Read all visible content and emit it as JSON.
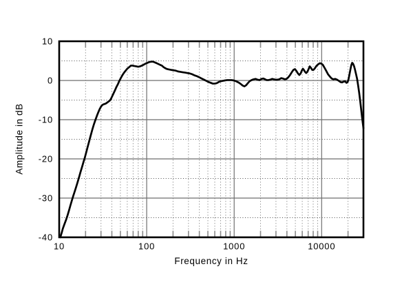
{
  "chart_data": {
    "type": "line",
    "title": "",
    "xlabel": "Frequency in Hz",
    "ylabel": "Amplitude in dB",
    "x_scale": "log",
    "xlim": [
      10,
      30000
    ],
    "ylim": [
      -40,
      10
    ],
    "grid": true,
    "legend_position": "none",
    "x_tick_labels": [
      {
        "value": 10,
        "label": "10"
      },
      {
        "value": 100,
        "label": "100"
      },
      {
        "value": 1000,
        "label": "1000"
      },
      {
        "value": 10000,
        "label": "10000"
      }
    ],
    "y_tick_labels": [
      {
        "value": 10,
        "label": "10"
      },
      {
        "value": 0,
        "label": "0"
      },
      {
        "value": -10,
        "label": "-10"
      },
      {
        "value": -20,
        "label": "-20"
      },
      {
        "value": -30,
        "label": "-30"
      },
      {
        "value": -40,
        "label": "-40"
      }
    ],
    "x_major_gridlines": [
      100,
      1000,
      10000
    ],
    "y_major_gridlines": [
      0,
      -10,
      -20,
      -30
    ],
    "y_minor_gridlines": [
      5,
      -5,
      -15,
      -25,
      -35
    ],
    "colors": {
      "curve": "#000000",
      "border": "#000000",
      "major_grid": "#6e6e6e",
      "minor_grid_v": "#9a9a9a",
      "minor_grid_h": "#4a4a4a",
      "tick_mark": "#8a8a8a"
    },
    "series": [
      {
        "name": "frequency response",
        "color": "#000000",
        "points": [
          [
            10.3,
            -40
          ],
          [
            10.7,
            -38.8
          ],
          [
            11,
            -37.8
          ],
          [
            11.5,
            -36.6
          ],
          [
            12,
            -35.5
          ],
          [
            12.5,
            -34.3
          ],
          [
            13,
            -33
          ],
          [
            13.5,
            -31.7
          ],
          [
            14,
            -30.5
          ],
          [
            14.5,
            -29.4
          ],
          [
            15,
            -28.4
          ],
          [
            15.5,
            -27.4
          ],
          [
            16,
            -26.4
          ],
          [
            16.5,
            -25.4
          ],
          [
            17,
            -24.4
          ],
          [
            17.5,
            -23.4
          ],
          [
            18,
            -22.5
          ],
          [
            18.5,
            -21.6
          ],
          [
            19,
            -20.7
          ],
          [
            19.5,
            -19.9
          ],
          [
            20,
            -19
          ],
          [
            20.5,
            -18.1
          ],
          [
            21,
            -17.2
          ],
          [
            22,
            -15.5
          ],
          [
            23,
            -13.9
          ],
          [
            24,
            -12.4
          ],
          [
            25,
            -11.1
          ],
          [
            26,
            -10
          ],
          [
            27,
            -9
          ],
          [
            28,
            -8.1
          ],
          [
            29,
            -7.3
          ],
          [
            30,
            -6.7
          ],
          [
            31,
            -6.3
          ],
          [
            32,
            -6.1
          ],
          [
            33,
            -6
          ],
          [
            34,
            -5.9
          ],
          [
            35,
            -5.7
          ],
          [
            36,
            -5.5
          ],
          [
            37,
            -5.3
          ],
          [
            38,
            -5.1
          ],
          [
            39,
            -4.7
          ],
          [
            40,
            -4.2
          ],
          [
            41,
            -3.7
          ],
          [
            42,
            -3.2
          ],
          [
            43,
            -2.7
          ],
          [
            44,
            -2.2
          ],
          [
            45,
            -1.7
          ],
          [
            46,
            -1.3
          ],
          [
            47,
            -0.9
          ],
          [
            48,
            -0.4
          ],
          [
            49,
            0
          ],
          [
            50,
            0.4
          ],
          [
            52,
            1.1
          ],
          [
            54,
            1.7
          ],
          [
            56,
            2.2
          ],
          [
            58,
            2.6
          ],
          [
            60,
            3
          ],
          [
            63,
            3.4
          ],
          [
            66,
            3.8
          ],
          [
            69,
            3.8
          ],
          [
            72,
            3.7
          ],
          [
            76,
            3.6
          ],
          [
            80,
            3.5
          ],
          [
            84,
            3.6
          ],
          [
            88,
            3.8
          ],
          [
            92,
            4
          ],
          [
            97,
            4.3
          ],
          [
            102,
            4.5
          ],
          [
            107,
            4.7
          ],
          [
            113,
            4.8
          ],
          [
            118,
            4.8
          ],
          [
            124,
            4.6
          ],
          [
            130,
            4.4
          ],
          [
            136,
            4.2
          ],
          [
            142,
            4
          ],
          [
            149,
            3.8
          ],
          [
            156,
            3.4
          ],
          [
            164,
            3.1
          ],
          [
            172,
            2.9
          ],
          [
            181,
            2.8
          ],
          [
            190,
            2.7
          ],
          [
            203,
            2.6
          ],
          [
            215,
            2.5
          ],
          [
            228,
            2.3
          ],
          [
            242,
            2.2
          ],
          [
            258,
            2.1
          ],
          [
            275,
            2
          ],
          [
            292,
            1.9
          ],
          [
            310,
            1.8
          ],
          [
            330,
            1.6
          ],
          [
            352,
            1.3
          ],
          [
            375,
            1.1
          ],
          [
            400,
            0.8
          ],
          [
            425,
            0.5
          ],
          [
            452,
            0.2
          ],
          [
            480,
            -0.1
          ],
          [
            510,
            -0.4
          ],
          [
            540,
            -0.6
          ],
          [
            570,
            -0.8
          ],
          [
            600,
            -0.8
          ],
          [
            630,
            -0.7
          ],
          [
            665,
            -0.4
          ],
          [
            700,
            -0.2
          ],
          [
            740,
            -0.1
          ],
          [
            780,
            0
          ],
          [
            830,
            0.1
          ],
          [
            880,
            0.1
          ],
          [
            935,
            0.1
          ],
          [
            990,
            0
          ],
          [
            1050,
            -0.2
          ],
          [
            1120,
            -0.5
          ],
          [
            1190,
            -0.9
          ],
          [
            1250,
            -1.3
          ],
          [
            1310,
            -1.5
          ],
          [
            1370,
            -1.2
          ],
          [
            1430,
            -0.7
          ],
          [
            1500,
            -0.2
          ],
          [
            1580,
            0.1
          ],
          [
            1670,
            0.3
          ],
          [
            1760,
            0.4
          ],
          [
            1850,
            0.2
          ],
          [
            1950,
            0.1
          ],
          [
            2050,
            0.4
          ],
          [
            2150,
            0.5
          ],
          [
            2250,
            0.3
          ],
          [
            2350,
            0.1
          ],
          [
            2460,
            0.1
          ],
          [
            2580,
            0.2
          ],
          [
            2710,
            0.4
          ],
          [
            2840,
            0.3
          ],
          [
            2980,
            0.2
          ],
          [
            3120,
            0.2
          ],
          [
            3280,
            0.3
          ],
          [
            3440,
            0.6
          ],
          [
            3600,
            0.5
          ],
          [
            3780,
            0.3
          ],
          [
            3960,
            0.4
          ],
          [
            4150,
            0.8
          ],
          [
            4350,
            1.4
          ],
          [
            4550,
            2.1
          ],
          [
            4750,
            2.7
          ],
          [
            4950,
            2.9
          ],
          [
            5150,
            2.4
          ],
          [
            5350,
            1.8
          ],
          [
            5550,
            1.4
          ],
          [
            5750,
            1.8
          ],
          [
            5950,
            2.6
          ],
          [
            6100,
            3
          ],
          [
            6250,
            2.7
          ],
          [
            6450,
            2.2
          ],
          [
            6650,
            1.9
          ],
          [
            6850,
            2.2
          ],
          [
            7050,
            2.8
          ],
          [
            7300,
            3.6
          ],
          [
            7550,
            3.2
          ],
          [
            7800,
            2.7
          ],
          [
            8050,
            2.7
          ],
          [
            8350,
            3.1
          ],
          [
            8700,
            3.7
          ],
          [
            9100,
            4.1
          ],
          [
            9500,
            4.4
          ],
          [
            9900,
            4.3
          ],
          [
            10300,
            4
          ],
          [
            10800,
            3.2
          ],
          [
            11300,
            2.4
          ],
          [
            11800,
            1.6
          ],
          [
            12400,
            1
          ],
          [
            13000,
            0.5
          ],
          [
            13600,
            0.3
          ],
          [
            14300,
            0.4
          ],
          [
            15000,
            0.2
          ],
          [
            15700,
            -0.1
          ],
          [
            16400,
            -0.4
          ],
          [
            17100,
            -0.5
          ],
          [
            17800,
            -0.3
          ],
          [
            18500,
            -0.2
          ],
          [
            19200,
            -0.6
          ],
          [
            19800,
            -0.4
          ],
          [
            20300,
            0.4
          ],
          [
            20800,
            1.6
          ],
          [
            21300,
            2.8
          ],
          [
            21800,
            3.9
          ],
          [
            22300,
            4.5
          ],
          [
            22800,
            4.3
          ],
          [
            23400,
            3.7
          ],
          [
            24000,
            2.8
          ],
          [
            24700,
            1.6
          ],
          [
            25400,
            0.4
          ],
          [
            26100,
            -1.3
          ],
          [
            26800,
            -3.1
          ],
          [
            27500,
            -5.1
          ],
          [
            28200,
            -7.2
          ],
          [
            28900,
            -9.3
          ],
          [
            29500,
            -10.9
          ],
          [
            30000,
            -12.2
          ]
        ]
      }
    ]
  }
}
